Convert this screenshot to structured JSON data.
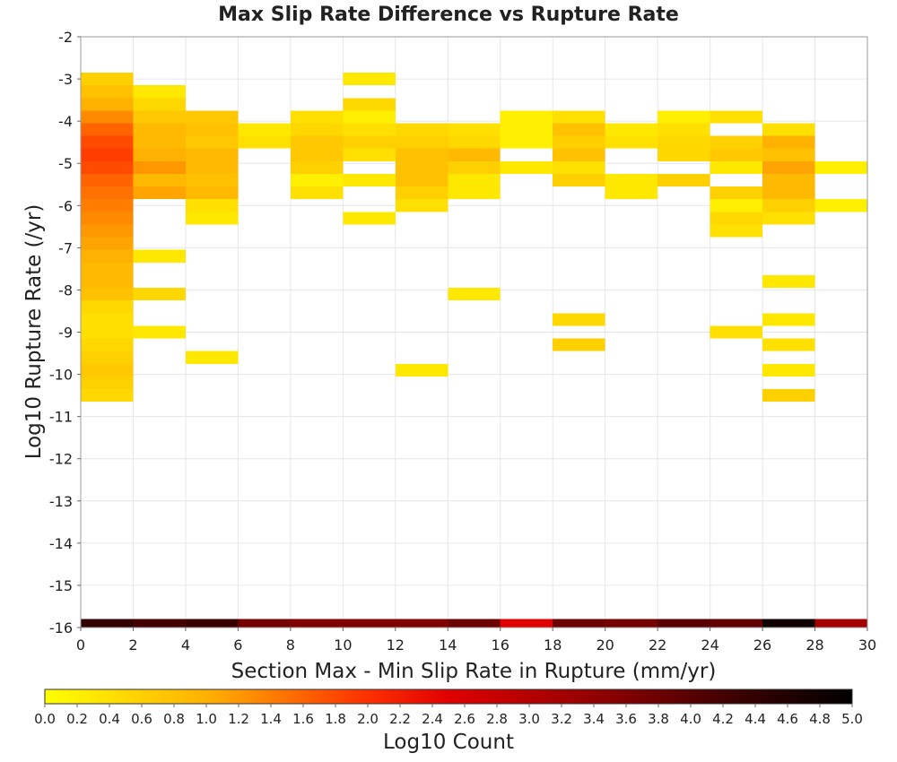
{
  "chart_data": {
    "type": "heatmap",
    "title": "Max Slip Rate Difference vs Rupture Rate",
    "xlabel": "Section Max - Min Slip Rate in Rupture (mm/yr)",
    "ylabel": "Log10 Rupture Rate (/yr)",
    "xlim": [
      0,
      30
    ],
    "ylim": [
      -16,
      -2
    ],
    "x_ticks": [
      "0",
      "2",
      "4",
      "6",
      "8",
      "10",
      "12",
      "14",
      "16",
      "18",
      "20",
      "22",
      "24",
      "26",
      "28",
      "30"
    ],
    "y_ticks": [
      "-2",
      "-3",
      "-4",
      "-5",
      "-6",
      "-7",
      "-8",
      "-9",
      "-10",
      "-11",
      "-12",
      "-13",
      "-14",
      "-15",
      "-16"
    ],
    "grid": true,
    "bin_width_x": 2,
    "bin_height_y": 0.3,
    "cells": [
      [
        0,
        -3.0,
        0.6
      ],
      [
        0,
        -3.3,
        0.8
      ],
      [
        0,
        -3.6,
        1.0
      ],
      [
        0,
        -3.9,
        1.3
      ],
      [
        0,
        -4.2,
        1.6
      ],
      [
        0,
        -4.5,
        1.8
      ],
      [
        0,
        -4.8,
        1.9
      ],
      [
        0,
        -5.1,
        1.8
      ],
      [
        0,
        -5.4,
        1.6
      ],
      [
        0,
        -5.7,
        1.5
      ],
      [
        0,
        -6.0,
        1.4
      ],
      [
        0,
        -6.3,
        1.3
      ],
      [
        0,
        -6.6,
        1.2
      ],
      [
        0,
        -6.9,
        1.1
      ],
      [
        0,
        -7.2,
        1.0
      ],
      [
        0,
        -7.5,
        0.9
      ],
      [
        0,
        -7.8,
        0.9
      ],
      [
        0,
        -8.1,
        0.8
      ],
      [
        0,
        -8.4,
        0.5
      ],
      [
        0,
        -8.7,
        0.4
      ],
      [
        0,
        -9.0,
        0.4
      ],
      [
        0,
        -9.3,
        0.5
      ],
      [
        0,
        -9.6,
        0.6
      ],
      [
        0,
        -9.9,
        0.7
      ],
      [
        0,
        -10.2,
        0.6
      ],
      [
        0,
        -10.5,
        0.5
      ],
      [
        2,
        -3.3,
        0.3
      ],
      [
        2,
        -3.6,
        0.5
      ],
      [
        2,
        -3.9,
        0.7
      ],
      [
        2,
        -4.2,
        0.9
      ],
      [
        2,
        -4.5,
        0.9
      ],
      [
        2,
        -4.8,
        1.0
      ],
      [
        2,
        -5.1,
        1.2
      ],
      [
        2,
        -5.4,
        0.9
      ],
      [
        2,
        -5.7,
        1.1
      ],
      [
        2,
        -7.2,
        0.3
      ],
      [
        2,
        -8.1,
        0.5
      ],
      [
        2,
        -9.0,
        0.3
      ],
      [
        4,
        -3.9,
        0.7
      ],
      [
        4,
        -4.2,
        0.8
      ],
      [
        4,
        -4.5,
        0.7
      ],
      [
        4,
        -4.8,
        0.9
      ],
      [
        4,
        -5.1,
        0.9
      ],
      [
        4,
        -5.4,
        0.8
      ],
      [
        4,
        -5.7,
        0.9
      ],
      [
        4,
        -6.0,
        0.4
      ],
      [
        4,
        -6.3,
        0.3
      ],
      [
        4,
        -9.6,
        0.3
      ],
      [
        6,
        -4.2,
        0.3
      ],
      [
        6,
        -4.5,
        0.4
      ],
      [
        8,
        -3.9,
        0.4
      ],
      [
        8,
        -4.2,
        0.5
      ],
      [
        8,
        -4.5,
        0.7
      ],
      [
        8,
        -4.8,
        0.7
      ],
      [
        8,
        -5.1,
        0.6
      ],
      [
        8,
        -5.4,
        0.2
      ],
      [
        8,
        -5.7,
        0.4
      ],
      [
        10,
        -3.0,
        0.3
      ],
      [
        10,
        -3.6,
        0.5
      ],
      [
        10,
        -3.9,
        0.2
      ],
      [
        10,
        -4.2,
        0.4
      ],
      [
        10,
        -4.5,
        0.6
      ],
      [
        10,
        -4.8,
        0.4
      ],
      [
        10,
        -5.4,
        0.3
      ],
      [
        10,
        -6.3,
        0.3
      ],
      [
        12,
        -4.2,
        0.5
      ],
      [
        12,
        -4.5,
        0.6
      ],
      [
        12,
        -4.8,
        0.8
      ],
      [
        12,
        -5.1,
        0.8
      ],
      [
        12,
        -5.4,
        0.8
      ],
      [
        12,
        -5.7,
        0.6
      ],
      [
        12,
        -6.0,
        0.4
      ],
      [
        12,
        -9.9,
        0.3
      ],
      [
        14,
        -4.2,
        0.4
      ],
      [
        14,
        -4.5,
        0.5
      ],
      [
        14,
        -4.8,
        0.9
      ],
      [
        14,
        -5.1,
        0.6
      ],
      [
        14,
        -5.4,
        0.3
      ],
      [
        14,
        -5.7,
        0.3
      ],
      [
        14,
        -8.1,
        0.3
      ],
      [
        16,
        -3.9,
        0.2
      ],
      [
        16,
        -4.2,
        0.2
      ],
      [
        16,
        -4.5,
        0.2
      ],
      [
        16,
        -5.1,
        0.3
      ],
      [
        18,
        -3.9,
        0.4
      ],
      [
        18,
        -4.2,
        0.8
      ],
      [
        18,
        -4.5,
        0.6
      ],
      [
        18,
        -4.8,
        0.8
      ],
      [
        18,
        -5.1,
        0.4
      ],
      [
        18,
        -5.4,
        0.6
      ],
      [
        18,
        -8.7,
        0.5
      ],
      [
        18,
        -9.3,
        0.6
      ],
      [
        20,
        -4.2,
        0.3
      ],
      [
        20,
        -4.5,
        0.4
      ],
      [
        20,
        -5.4,
        0.3
      ],
      [
        20,
        -5.7,
        0.3
      ],
      [
        22,
        -3.9,
        0.2
      ],
      [
        22,
        -4.2,
        0.4
      ],
      [
        22,
        -4.5,
        0.5
      ],
      [
        22,
        -4.8,
        0.5
      ],
      [
        22,
        -5.4,
        0.6
      ],
      [
        24,
        -3.9,
        0.4
      ],
      [
        24,
        -4.5,
        0.6
      ],
      [
        24,
        -4.8,
        0.7
      ],
      [
        24,
        -5.1,
        0.3
      ],
      [
        24,
        -5.7,
        0.6
      ],
      [
        24,
        -6.0,
        0.2
      ],
      [
        24,
        -6.3,
        0.5
      ],
      [
        24,
        -6.6,
        0.4
      ],
      [
        24,
        -9.0,
        0.4
      ],
      [
        26,
        -4.2,
        0.4
      ],
      [
        26,
        -4.5,
        1.0
      ],
      [
        26,
        -4.8,
        0.8
      ],
      [
        26,
        -5.1,
        1.1
      ],
      [
        26,
        -5.4,
        0.9
      ],
      [
        26,
        -5.7,
        0.9
      ],
      [
        26,
        -6.0,
        0.6
      ],
      [
        26,
        -6.3,
        0.4
      ],
      [
        26,
        -7.8,
        0.3
      ],
      [
        26,
        -8.7,
        0.3
      ],
      [
        26,
        -9.3,
        0.4
      ],
      [
        26,
        -9.9,
        0.3
      ],
      [
        26,
        -10.5,
        0.6
      ],
      [
        28,
        -5.1,
        0.2
      ],
      [
        28,
        -6.0,
        0.2
      ]
    ],
    "bottom_row": {
      "y": -15.9,
      "values": [
        4.4,
        4.2,
        4.3,
        3.7,
        3.6,
        3.6,
        3.6,
        3.8,
        2.5,
        3.8,
        3.7,
        4.0,
        3.9,
        4.8,
        3.2
      ]
    },
    "colorbar": {
      "label": "Log10 Count",
      "min": 0.0,
      "max": 5.0,
      "ticks": [
        "0.0",
        "0.2",
        "0.4",
        "0.6",
        "0.8",
        "1.0",
        "1.2",
        "1.4",
        "1.6",
        "1.8",
        "2.0",
        "2.2",
        "2.4",
        "2.6",
        "2.8",
        "3.0",
        "3.2",
        "3.4",
        "3.6",
        "3.8",
        "4.0",
        "4.2",
        "4.4",
        "4.6",
        "4.8",
        "5.0"
      ],
      "stops": [
        [
          0.0,
          "#ffff00"
        ],
        [
          1.0,
          "#ffb100"
        ],
        [
          2.0,
          "#ff3000"
        ],
        [
          2.5,
          "#e00000"
        ],
        [
          3.5,
          "#8a0000"
        ],
        [
          4.3,
          "#3a0000"
        ],
        [
          5.0,
          "#000000"
        ]
      ]
    }
  }
}
